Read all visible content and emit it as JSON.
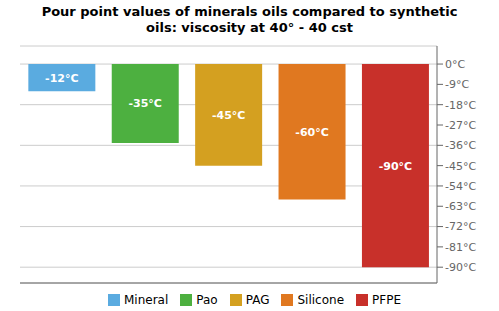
{
  "chart_data": {
    "type": "bar",
    "title": "Pour point values of minerals oils compared to synthetic\noils: viscosity at 40° - 40 cst",
    "categories": [
      "Mineral",
      "Pao",
      "PAG",
      "Silicone",
      "PFPE"
    ],
    "values": [
      -12,
      -35,
      -45,
      -60,
      -90
    ],
    "value_labels": [
      "-12°C",
      "-35°C",
      "-45°C",
      "-60°C",
      "-90°C"
    ],
    "data_labels": true,
    "colors": [
      "#5aabe0",
      "#4db040",
      "#d4a020",
      "#e07820",
      "#c8302a"
    ],
    "ylim": [
      -97,
      8
    ],
    "yticks": [
      {
        "value": 0,
        "label": "0°C"
      },
      {
        "value": -9,
        "label": "-9°C"
      },
      {
        "value": -18,
        "label": "-18°C"
      },
      {
        "value": -27,
        "label": "-27°C"
      },
      {
        "value": -36,
        "label": "-36°C"
      },
      {
        "value": -45,
        "label": "-45°C"
      },
      {
        "value": -54,
        "label": "-54°C"
      },
      {
        "value": -63,
        "label": "-63°C"
      },
      {
        "value": -72,
        "label": "-72°C"
      },
      {
        "value": -81,
        "label": "-81°C"
      },
      {
        "value": -90,
        "label": "-90°C"
      }
    ],
    "grid": true,
    "legend": "bottom",
    "tick_labels": "y"
  }
}
